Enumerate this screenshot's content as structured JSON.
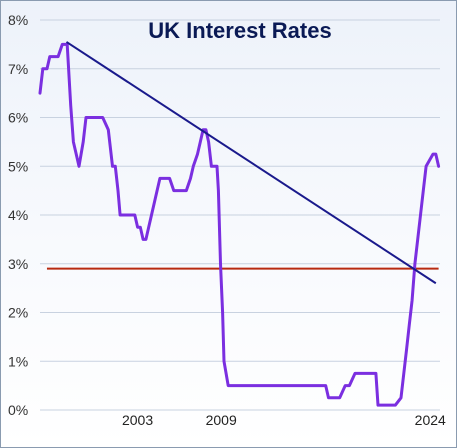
{
  "chart_data": {
    "type": "line",
    "title": "UK Interest Rates",
    "xlabel": "",
    "ylabel": "",
    "y_ticks": [
      "0%",
      "1%",
      "2%",
      "3%",
      "4%",
      "5%",
      "6%",
      "7%",
      "8%"
    ],
    "ylim": [
      0,
      8
    ],
    "xlim": [
      1996.0,
      2024.7
    ],
    "x_ticks": [
      {
        "x": 2003,
        "label": "2003"
      },
      {
        "x": 2009,
        "label": "2009"
      },
      {
        "x": 2024,
        "label": "2024"
      }
    ],
    "grid": "horizontal",
    "legend": "none",
    "colors": {
      "rate_line": "#7b2fe0",
      "trend_line": "#1a1a8c",
      "level_line": "#b82a10",
      "grid": "#c8d2e0",
      "title": "#0a1a55"
    },
    "series": [
      {
        "type": "line",
        "x": [
          1996.0,
          1996.2,
          1996.5,
          1996.7,
          1997.0,
          1997.3,
          1997.6,
          1997.8,
          1997.95,
          1998.2,
          1998.4,
          1998.6,
          1998.8,
          1998.95,
          1999.1,
          1999.3,
          1999.5,
          1999.7,
          1999.9,
          2000.1,
          2000.5,
          2000.9,
          2001.0,
          2001.2,
          2001.4,
          2001.6,
          2001.75,
          2001.9,
          2002.2,
          2002.5,
          2002.8,
          2003.0,
          2003.2,
          2003.4,
          2003.6,
          2003.8,
          2004.0,
          2004.2,
          2004.4,
          2004.6,
          2004.8,
          2005.0,
          2005.3,
          2005.6,
          2005.9,
          2006.2,
          2006.5,
          2006.8,
          2007.0,
          2007.3,
          2007.5,
          2007.7,
          2007.9,
          2008.1,
          2008.3,
          2008.5,
          2008.7,
          2008.8,
          2008.95,
          2009.1,
          2009.2,
          2009.5,
          2010,
          2012,
          2014,
          2016.5,
          2016.7,
          2017.5,
          2017.9,
          2018.2,
          2018.6,
          2019,
          2019.5,
          2020.1,
          2020.25,
          2021.5,
          2021.9,
          2022.1,
          2022.3,
          2022.5,
          2022.7,
          2022.9,
          2023.1,
          2023.3,
          2023.5,
          2023.7,
          2024.2,
          2024.4,
          2024.6
        ],
        "y": [
          6.5,
          7.0,
          7.0,
          7.25,
          7.25,
          7.25,
          7.5,
          7.5,
          7.5,
          6.25,
          5.5,
          5.25,
          5.0,
          5.25,
          5.5,
          6.0,
          6.0,
          6.0,
          6.0,
          6.0,
          6.0,
          5.75,
          5.5,
          5.0,
          5.0,
          4.5,
          4.0,
          4.0,
          4.0,
          4.0,
          4.0,
          3.75,
          3.75,
          3.5,
          3.5,
          3.75,
          4.0,
          4.25,
          4.5,
          4.75,
          4.75,
          4.75,
          4.75,
          4.5,
          4.5,
          4.5,
          4.5,
          4.75,
          5.0,
          5.25,
          5.5,
          5.75,
          5.75,
          5.5,
          5.0,
          5.0,
          5.0,
          4.5,
          3.0,
          2.0,
          1.0,
          0.5,
          0.5,
          0.5,
          0.5,
          0.5,
          0.25,
          0.25,
          0.5,
          0.5,
          0.75,
          0.75,
          0.75,
          0.75,
          0.1,
          0.1,
          0.25,
          0.75,
          1.25,
          1.75,
          2.25,
          3.0,
          3.5,
          4.0,
          4.5,
          5.0,
          5.25,
          5.25,
          5.0
        ]
      },
      {
        "type": "trend",
        "x": [
          1997.9,
          2024.4
        ],
        "y": [
          7.55,
          2.6
        ]
      },
      {
        "type": "horizontal",
        "x": [
          1996.5,
          2024.6
        ],
        "y": [
          2.9,
          2.9
        ]
      }
    ]
  }
}
